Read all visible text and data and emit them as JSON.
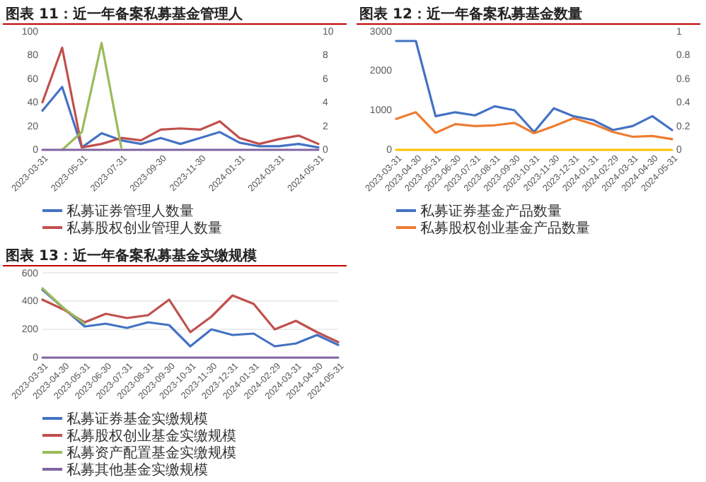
{
  "chart_data": [
    {
      "type": "line",
      "title": "图表 11：近一年备案私募基金管理人",
      "categories": [
        "2023-03-31",
        null,
        "2023-05-31",
        null,
        "2023-07-31",
        null,
        "2023-09-30",
        null,
        "2023-11-30",
        null,
        "2024-01-31",
        null,
        "2024-03-31",
        null,
        "2024-05-31"
      ],
      "ylim": [
        0,
        100
      ],
      "yticks": [
        0,
        20,
        40,
        60,
        80,
        100
      ],
      "y2lim": [
        0,
        10
      ],
      "y2ticks": [
        0,
        2,
        4,
        6,
        8,
        10
      ],
      "legend": "bottom",
      "series": [
        {
          "name": "私募证券管理人数量",
          "color": "#4472c4",
          "values": [
            33,
            53,
            2,
            14,
            8,
            5,
            10,
            5,
            10,
            15,
            6,
            3,
            3,
            5,
            2
          ]
        },
        {
          "name": "私募股权创业管理人数量",
          "color": "#c0504d",
          "values": [
            40,
            86,
            2,
            5,
            10,
            8,
            17,
            18,
            17,
            24,
            10,
            5,
            9,
            12,
            5
          ]
        },
        {
          "color": "#9bbb59",
          "axis": "y2",
          "values": [
            null,
            0,
            1.5,
            9,
            0.2,
            null,
            null,
            null,
            null,
            null,
            null,
            null,
            null,
            null,
            null
          ]
        },
        {
          "color": "#8064a2",
          "values": [
            0,
            0,
            0,
            0,
            0,
            0,
            0,
            0,
            0,
            0,
            0,
            0,
            0,
            0,
            0
          ]
        }
      ]
    },
    {
      "type": "line",
      "title": "图表 12：近一年备案私募基金数量",
      "categories": [
        "2023-03-31",
        "2023-04-30",
        "2023-05-31",
        "2023-06-30",
        "2023-07-31",
        "2023-08-31",
        "2023-09-30",
        "2023-10-31",
        "2023-11-30",
        "2023-12-31",
        "2024-01-31",
        "2024-02-29",
        "2024-03-31",
        "2024-04-30",
        "2024-05-31"
      ],
      "ylim": [
        0,
        3000
      ],
      "yticks": [
        0,
        1000,
        2000,
        3000
      ],
      "y2lim": [
        0,
        1
      ],
      "y2ticks": [
        0,
        0.2,
        0.4,
        0.6,
        0.8,
        1
      ],
      "legend": "bottom",
      "series": [
        {
          "name": "私募证券基金产品数量",
          "color": "#4472c4",
          "values": [
            2750,
            2750,
            850,
            950,
            870,
            1100,
            1000,
            450,
            1050,
            850,
            750,
            500,
            600,
            850,
            500
          ]
        },
        {
          "name": "私募股权创业基金产品数量",
          "color": "#ed7d31",
          "values": [
            780,
            950,
            430,
            650,
            600,
            620,
            680,
            420,
            600,
            800,
            650,
            450,
            330,
            350,
            270
          ]
        },
        {
          "color": "#ffc000",
          "axis": "y2",
          "values": [
            0,
            0,
            0,
            0,
            0,
            0,
            0,
            0,
            0,
            0,
            0,
            0,
            0,
            0,
            0
          ]
        }
      ]
    },
    {
      "type": "line",
      "title": "图表 13：近一年备案私募基金实缴规模",
      "categories": [
        "2023-03-31",
        "2023-04-30",
        "2023-05-31",
        "2023-06-30",
        "2023-07-31",
        "2023-08-31",
        "2023-09-30",
        "2023-10-31",
        "2023-11-30",
        "2023-12-31",
        "2024-01-31",
        "2024-02-29",
        "2024-03-31",
        "2024-04-30",
        "2024-05-31"
      ],
      "ylim": [
        0,
        600
      ],
      "yticks": [
        0,
        200,
        400,
        600
      ],
      "grid": "y",
      "legend": "bottom",
      "series": [
        {
          "name": "私募证券基金实缴规模",
          "color": "#4472c4",
          "values": [
            480,
            350,
            220,
            240,
            210,
            250,
            230,
            80,
            200,
            160,
            170,
            80,
            100,
            160,
            90
          ]
        },
        {
          "name": "私募股权创业基金实缴规模",
          "color": "#c0504d",
          "values": [
            410,
            340,
            250,
            310,
            280,
            300,
            410,
            180,
            290,
            440,
            380,
            200,
            260,
            180,
            110
          ]
        },
        {
          "name": "私募资产配置基金实缴规模",
          "color": "#9bbb59",
          "values": [
            490,
            350,
            240,
            null,
            null,
            null,
            null,
            null,
            null,
            null,
            null,
            null,
            null,
            null,
            null
          ]
        },
        {
          "name": "私募其他基金实缴规模",
          "color": "#8064a2",
          "values": [
            0,
            0,
            0,
            0,
            0,
            0,
            0,
            0,
            0,
            0,
            0,
            0,
            0,
            0,
            0
          ]
        }
      ]
    }
  ]
}
